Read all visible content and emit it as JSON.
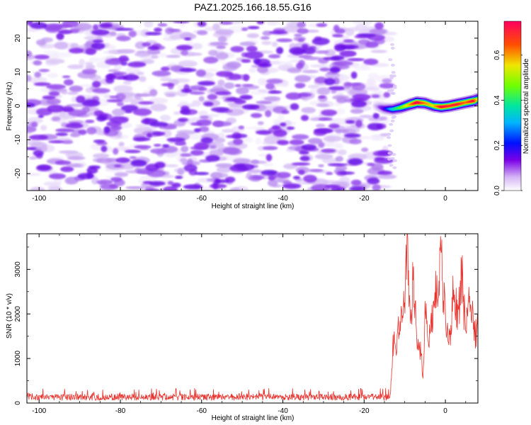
{
  "title": "PAZ1.2025.166.18.55.G16",
  "chart_data": [
    {
      "type": "heatmap",
      "xlabel": "Height of straight line (km)",
      "ylabel": "Frequency (Hz)",
      "xlim": [
        -103,
        8
      ],
      "ylim": [
        -25,
        25
      ],
      "xticks": [
        -100,
        -80,
        -60,
        -40,
        -20,
        0
      ],
      "yticks": [
        -20,
        -10,
        0,
        10,
        20
      ],
      "colorbar": {
        "label": "Normalized spectral amplitude",
        "range": [
          0,
          0.75
        ],
        "ticks": [
          0.0,
          0.2,
          0.4,
          0.6
        ]
      },
      "noise_region": {
        "x_range": [
          -103,
          -14
        ],
        "freq_range": [
          -25,
          25
        ],
        "amplitude": [
          0.0,
          0.15
        ]
      },
      "signal_track": {
        "x": [
          -17,
          -15,
          -13,
          -11,
          -9,
          -7,
          -5,
          -3,
          -1,
          1,
          3,
          5,
          7,
          8
        ],
        "freq": [
          0.0,
          -0.8,
          -1.0,
          -0.5,
          0.3,
          1.0,
          0.8,
          0.0,
          -0.3,
          0.0,
          0.5,
          1.0,
          1.5,
          2.0
        ],
        "amplitude": [
          0.05,
          0.18,
          0.32,
          0.42,
          0.55,
          0.75,
          0.6,
          0.52,
          0.72,
          0.68,
          0.7,
          0.62,
          0.72,
          0.5
        ]
      },
      "grid": false
    },
    {
      "type": "line",
      "xlabel": "Height of straight line (km)",
      "ylabel": "SNR (10 * v/v)",
      "xlim": [
        -103,
        8
      ],
      "ylim": [
        0,
        3800
      ],
      "xticks": [
        -100,
        -80,
        -60,
        -40,
        -20,
        0
      ],
      "yticks": [
        0,
        1000,
        2000,
        3000
      ],
      "color": "#e8322d",
      "x": [
        -103,
        -90,
        -80,
        -70,
        -60,
        -50,
        -40,
        -30,
        -20,
        -15,
        -13.5,
        -13,
        -12,
        -11,
        -10.5,
        -10,
        -9.4,
        -9,
        -8.5,
        -8,
        -7,
        -6,
        -5.5,
        -5,
        -4,
        -3,
        -2,
        -1,
        0,
        1,
        2,
        3,
        4,
        5,
        6,
        7,
        8
      ],
      "values": [
        130,
        120,
        110,
        125,
        115,
        120,
        110,
        120,
        115,
        130,
        200,
        1300,
        1500,
        1900,
        2300,
        2700,
        3750,
        2500,
        1800,
        3000,
        1600,
        1200,
        600,
        2100,
        1600,
        2000,
        2900,
        3300,
        2000,
        1400,
        2800,
        1900,
        3100,
        1600,
        2800,
        1700,
        1700
      ],
      "noise_band": [
        60,
        330
      ],
      "grid": false
    }
  ]
}
